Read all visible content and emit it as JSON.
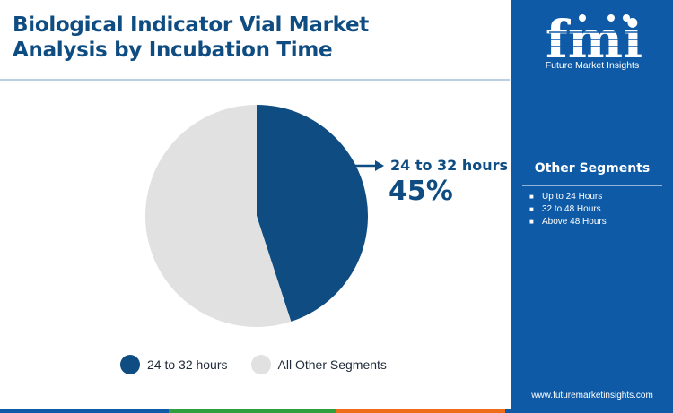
{
  "header": {
    "title_line1": "Biological Indicator Vial Market",
    "title_line2": "Analysis by Incubation Time"
  },
  "brand": {
    "logo_text": "fmi",
    "caption": "Future Market Insights",
    "website": "www.futuremarketinsights.com"
  },
  "sidebar": {
    "title": "Other Segments",
    "items": [
      "Up to 24 Hours",
      "32 to 48 Hours",
      "Above 48 Hours"
    ]
  },
  "callout": {
    "label": "24 to 32 hours",
    "value": "45%"
  },
  "colors": {
    "primary": "#0f4c81",
    "sidebar": "#0e5aa7",
    "other_segments": "#e1e1e1",
    "bottom_bar": [
      "#0e5aa7",
      "#2e9e3f",
      "#ef6c1a",
      "#0e5aa7"
    ]
  },
  "chart_data": {
    "type": "pie",
    "title": "Biological Indicator Vial Market Analysis by Incubation Time",
    "slices": [
      {
        "label": "24 to 32 hours",
        "value": 45,
        "color": "#0f4c81"
      },
      {
        "label": "All Other Segments",
        "value": 55,
        "color": "#e1e1e1"
      }
    ],
    "start_angle": "12 o'clock",
    "direction": "clockwise",
    "legend_position": "bottom"
  }
}
